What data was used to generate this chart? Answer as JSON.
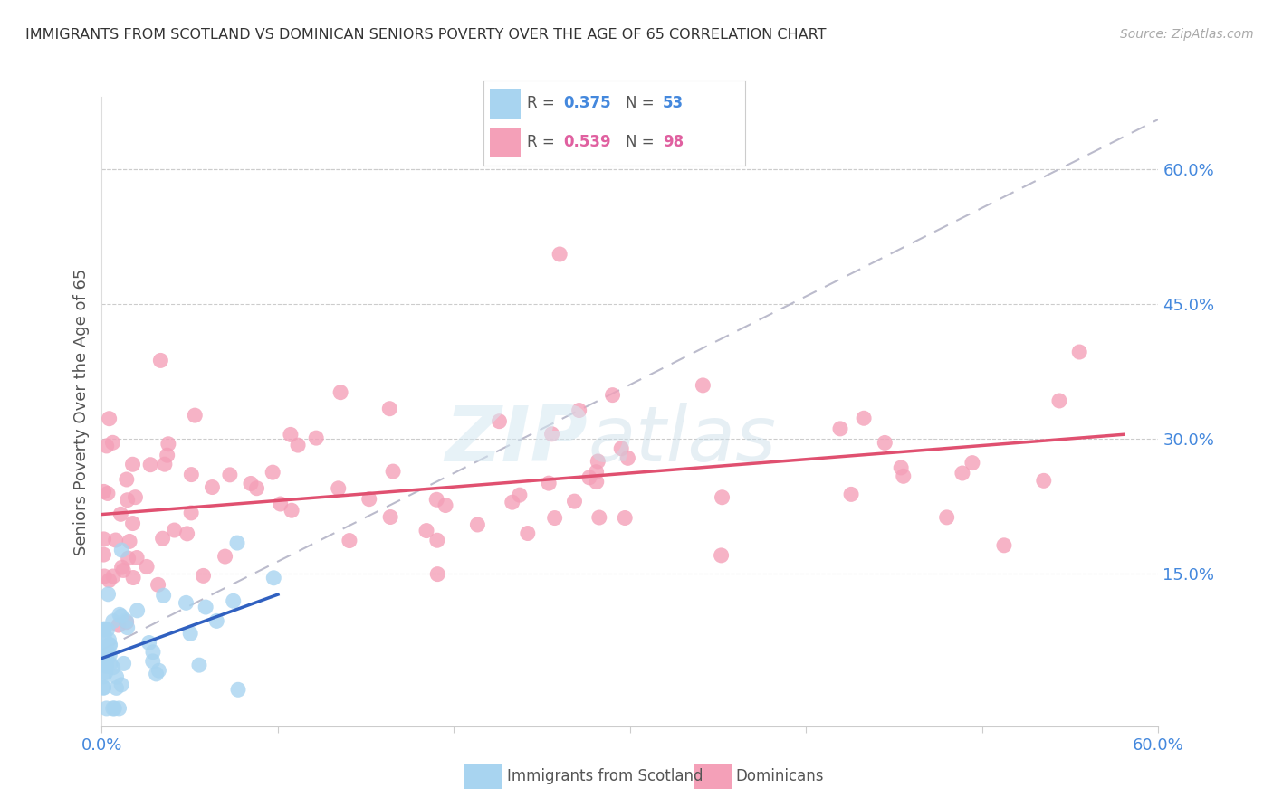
{
  "title": "IMMIGRANTS FROM SCOTLAND VS DOMINICAN SENIORS POVERTY OVER THE AGE OF 65 CORRELATION CHART",
  "source": "Source: ZipAtlas.com",
  "ylabel": "Seniors Poverty Over the Age of 65",
  "xlim": [
    0.0,
    0.6
  ],
  "ylim": [
    -0.02,
    0.68
  ],
  "scotland_R": "0.375",
  "scotland_N": "53",
  "dominican_R": "0.539",
  "dominican_N": "98",
  "scotland_scatter_color": "#A8D4F0",
  "dominican_scatter_color": "#F4A0B8",
  "scotland_line_color": "#3060C0",
  "dominican_line_color": "#E05070",
  "dashed_line_color": "#BBBBCC",
  "grid_color": "#CCCCCC",
  "tick_color": "#4488DD",
  "title_color": "#333333",
  "ylabel_color": "#555555",
  "legend_border_color": "#CCCCCC",
  "background": "#FFFFFF"
}
